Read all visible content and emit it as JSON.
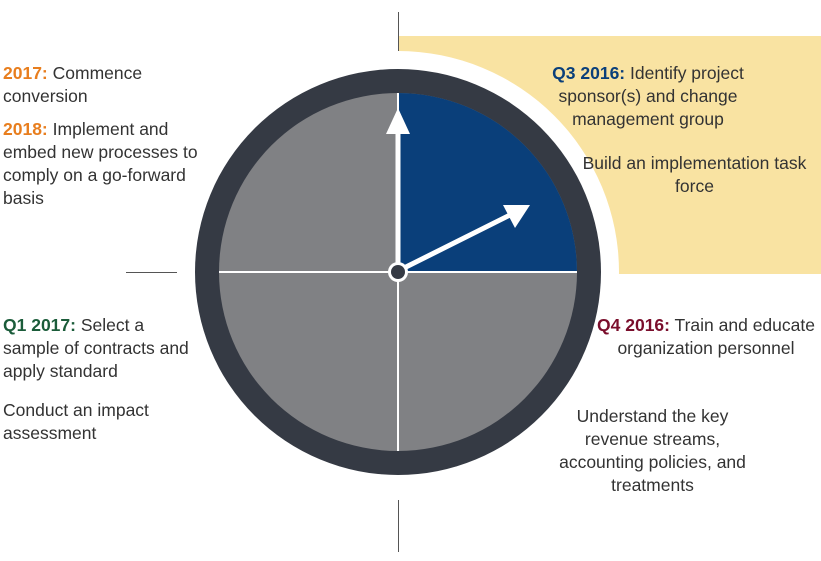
{
  "colors": {
    "highlight_bg": "#f9e3a2",
    "quadrant_grey": "#808184",
    "quadrant_navy": "#0a3f7a",
    "clock_ring": "#353a44",
    "label_orange": "#e87e1e",
    "label_navy": "#0a3f7a",
    "label_green": "#1b5c3a",
    "label_maroon": "#7a0e2c"
  },
  "top_left": {
    "item1_label": "2017:",
    "item1_text": "Commence conversion",
    "item2_label": "2018:",
    "item2_text": "Implement and embed new processes to comply on a go-forward basis"
  },
  "q3": {
    "label": "Q3 2016:",
    "text": "Identify project sponsor(s) and change management group",
    "extra": "Build an implementation task force"
  },
  "q1": {
    "label": "Q1 2017:",
    "text": "Select a sample of contracts and apply standard",
    "extra": "Conduct an impact assessment"
  },
  "q4": {
    "label": "Q4 2016:",
    "text": "Train and educate organization personnel",
    "extra": "Understand the key revenue streams, accounting policies, and treatments"
  }
}
